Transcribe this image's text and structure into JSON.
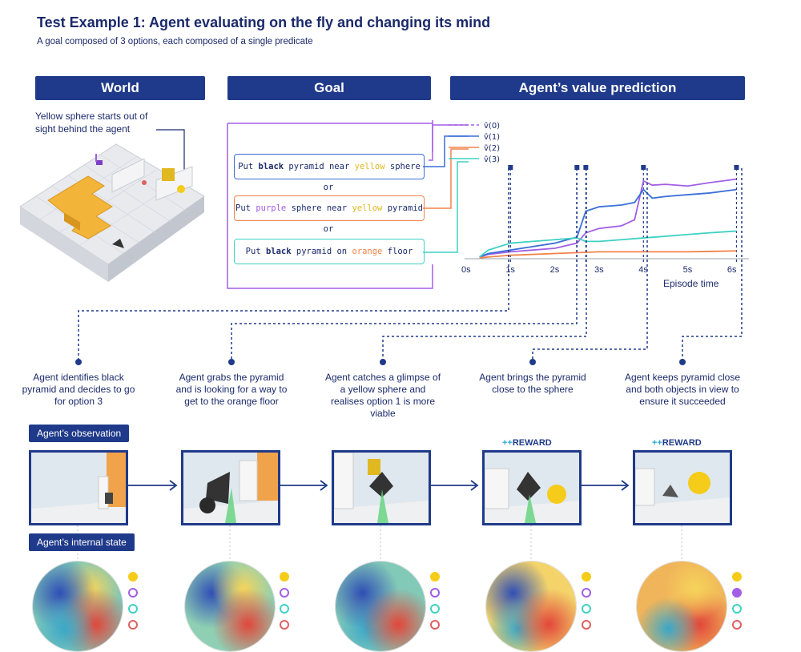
{
  "title": "Test Example 1: Agent evaluating on the fly and changing its mind",
  "subtitle": "A goal composed of 3 options, each composed of a single predicate",
  "headers": {
    "world": "World",
    "goal": "Goal",
    "value": "Agent’s value prediction"
  },
  "world_note": "Yellow sphere starts out of sight behind the agent",
  "goals": {
    "opt1": {
      "prefix": "Put ",
      "obj1": "black",
      "mid": " pyramid near ",
      "obj2": "yellow",
      "suffix": " sphere"
    },
    "or": "or",
    "opt2": {
      "prefix": "Put ",
      "obj1": "purple",
      "mid": " sphere near ",
      "obj2": "yellow",
      "suffix": " pyramid"
    },
    "opt3": {
      "prefix": "Put ",
      "obj1": "black",
      "mid": " pyramid on ",
      "obj2": "orange",
      "suffix": " floor"
    }
  },
  "colors": {
    "navy": "#1f3a8a",
    "purple": "#a35ee6",
    "blue": "#3a6fd8",
    "orange": "#f0834a",
    "teal": "#3fd1c4",
    "yellow": "#f5cc1a",
    "red": "#e06060"
  },
  "chart_data": {
    "type": "line",
    "xlabel": "Episode time",
    "ylabel": "",
    "x_ticks": [
      "0s",
      "1s",
      "2s",
      "3s",
      "4s",
      "5s",
      "6s"
    ],
    "xlim": [
      0,
      6.2
    ],
    "legend": [
      "v̂(0)",
      "v̂(1)",
      "v̂(2)",
      "v̂(3)"
    ],
    "event_times": [
      1.0,
      2.5,
      2.7,
      4.0,
      6.1
    ],
    "series": [
      {
        "name": "v̂(0)",
        "color": "#a35ee6",
        "x": [
          0.3,
          0.5,
          1.0,
          1.5,
          2.0,
          2.5,
          2.7,
          3.0,
          3.5,
          3.8,
          4.0,
          4.2,
          4.5,
          5.0,
          5.5,
          6.1
        ],
        "y": [
          0.02,
          0.05,
          0.08,
          0.1,
          0.12,
          0.18,
          0.3,
          0.35,
          0.38,
          0.45,
          0.9,
          0.85,
          0.86,
          0.84,
          0.88,
          0.92
        ]
      },
      {
        "name": "v̂(1)",
        "color": "#3a6fd8",
        "x": [
          0.3,
          0.5,
          1.0,
          1.5,
          2.0,
          2.5,
          2.7,
          3.0,
          3.5,
          3.8,
          4.0,
          4.2,
          4.5,
          5.0,
          5.5,
          6.1
        ],
        "y": [
          0.02,
          0.06,
          0.1,
          0.14,
          0.18,
          0.25,
          0.55,
          0.6,
          0.62,
          0.65,
          0.8,
          0.7,
          0.72,
          0.74,
          0.76,
          0.8
        ]
      },
      {
        "name": "v̂(2)",
        "color": "#f0834a",
        "x": [
          0.3,
          0.5,
          1.0,
          2.0,
          3.0,
          4.0,
          5.0,
          6.1
        ],
        "y": [
          0.01,
          0.02,
          0.04,
          0.06,
          0.08,
          0.08,
          0.08,
          0.09
        ]
      },
      {
        "name": "v̂(3)",
        "color": "#3fd1c4",
        "x": [
          0.3,
          0.5,
          1.0,
          1.5,
          2.0,
          2.5,
          2.7,
          3.0,
          3.5,
          4.0,
          4.5,
          5.0,
          5.5,
          6.1
        ],
        "y": [
          0.02,
          0.1,
          0.18,
          0.2,
          0.22,
          0.24,
          0.2,
          0.2,
          0.22,
          0.24,
          0.26,
          0.28,
          0.3,
          0.32
        ]
      }
    ]
  },
  "steps": [
    {
      "caption": "Agent identifies black pyramid and decides to go for option 3",
      "reward": ""
    },
    {
      "caption": "Agent grabs the pyramid and is looking for a way to get to the orange floor",
      "reward": ""
    },
    {
      "caption": "Agent catches a glimpse of a yellow sphere and realises option 1 is more viable",
      "reward": ""
    },
    {
      "caption": "Agent brings the pyramid close to the sphere",
      "reward": "REWARD"
    },
    {
      "caption": "Agent keeps pyramid close and both objects in view to ensure it succeeded",
      "reward": "REWARD"
    }
  ],
  "reward_prefix": "++",
  "labels": {
    "observation": "Agent’s observation",
    "internal": "Agent’s internal state"
  }
}
